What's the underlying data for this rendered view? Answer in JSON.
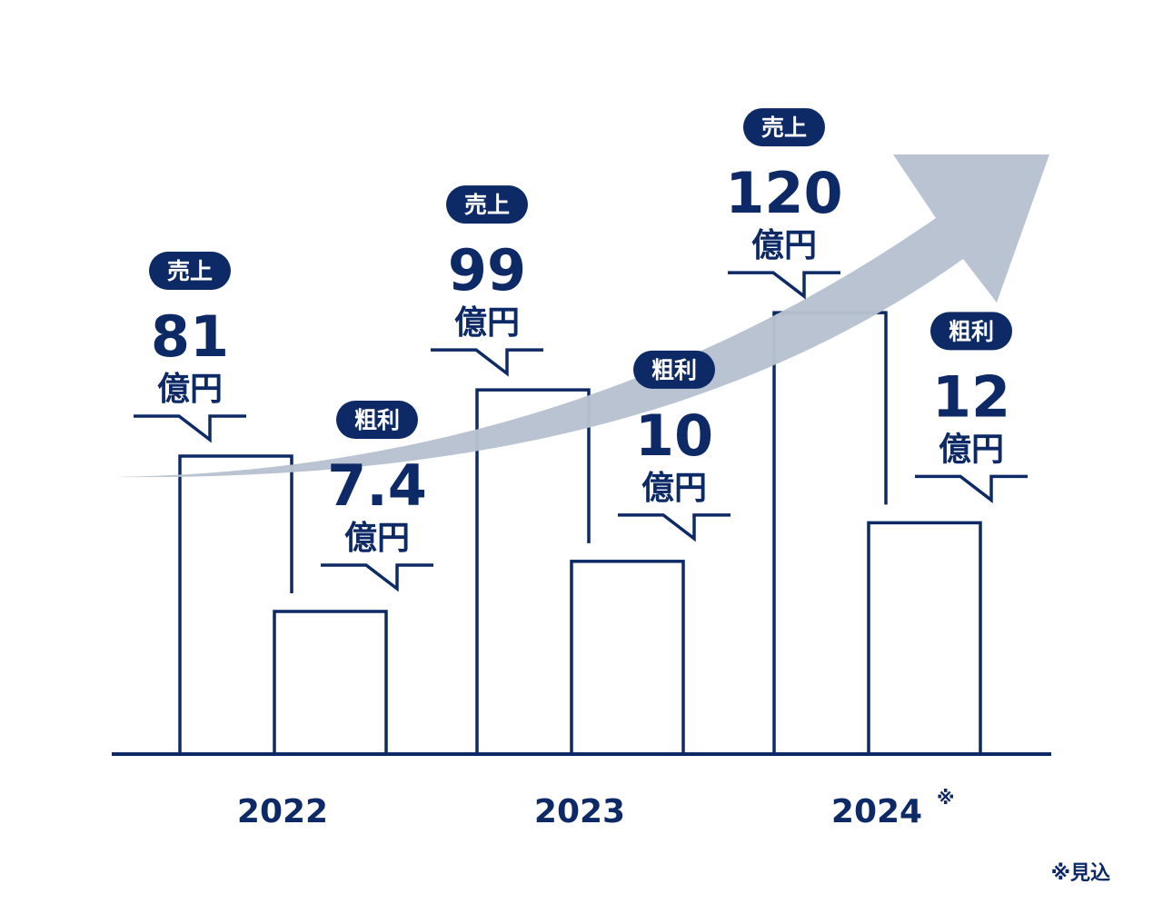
{
  "chart_data": {
    "type": "bar",
    "categories": [
      "2022",
      "2023",
      "2024"
    ],
    "category_marks": [
      "",
      "",
      "※"
    ],
    "unit": "億円",
    "series": [
      {
        "name": "売上",
        "values": [
          81,
          99,
          120
        ],
        "value_labels": [
          "81",
          "99",
          "120"
        ]
      },
      {
        "name": "粗利",
        "values": [
          7.4,
          10,
          12
        ],
        "value_labels": [
          "7.4",
          "10",
          "12"
        ]
      }
    ],
    "trend_arrow": true
  },
  "footnote": "※見込",
  "colors": {
    "navy": "#0d2a66",
    "arrow": "#b7c1d0",
    "bar_fill": "#ffffff"
  }
}
